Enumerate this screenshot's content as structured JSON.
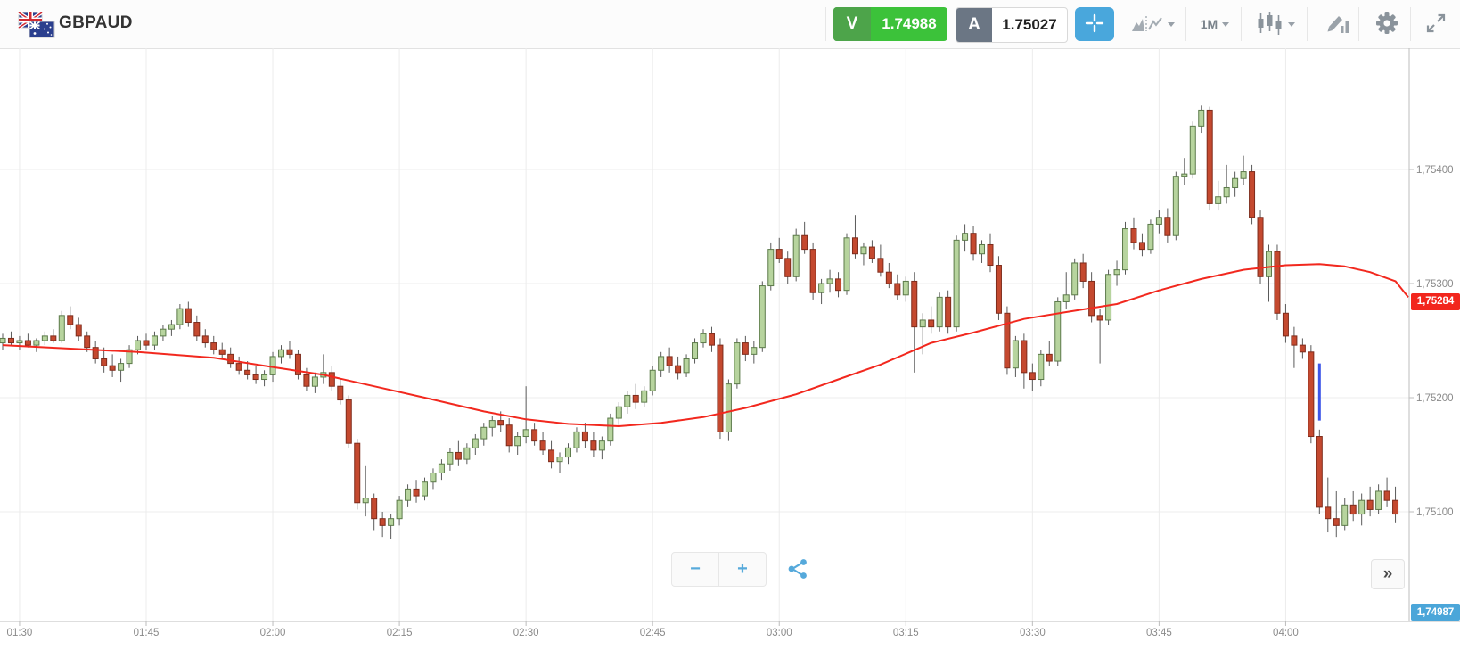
{
  "header": {
    "symbol": "GBPAUD",
    "sell_button": {
      "label": "V",
      "price": "1.74988",
      "color": "#3cc23a"
    },
    "buy_button": {
      "label": "A",
      "price": "1.75027",
      "color": "#6b7684"
    },
    "timeframe_label": "1M",
    "icons": {
      "flags": "gb-au-flag-pair",
      "crosshair": "crosshair",
      "chart_type": "area-line-chart",
      "candle_style": "candlesticks",
      "draw": "pencil-over-bars",
      "settings": "gear",
      "fullscreen": "diagonal-expand-arrows"
    }
  },
  "footer": {
    "zoom_out_label": "−",
    "zoom_in_label": "+",
    "share_icon": "share-nodes",
    "collapse_label": "»"
  },
  "chart_data": {
    "type": "candlestick",
    "symbol": "GBPAUD",
    "interval": "1m",
    "start_time": "01:28",
    "ohlc_format": [
      "open",
      "high",
      "low",
      "close"
    ],
    "price_encoding": "integer v means price = 1.70000 + v/100000",
    "x_tick_labels": [
      "01:30",
      "01:45",
      "02:00",
      "02:15",
      "02:30",
      "02:45",
      "03:00",
      "03:15",
      "03:30",
      "03:45",
      "04:00"
    ],
    "y_tick_labels": [
      "1,75400",
      "1,75300",
      "1,75200",
      "1,75100"
    ],
    "y_tick_prices": [
      1.754,
      1.753,
      1.752,
      1.751
    ],
    "ylim": [
      1.74998,
      1.75506
    ],
    "grid": true,
    "legend_position": "none",
    "indicator_price_tag": {
      "value": "1,75284",
      "price": 1.75284,
      "color": "#f2261d"
    },
    "last_price_tag": {
      "value": "1,74987",
      "price": 1.74987,
      "color": "#4ba6d9",
      "pinned_bottom": true
    },
    "marker_line": {
      "color": "#3d56e8",
      "time": "04:04",
      "price_from": 1.7523,
      "price_to": 1.7518
    },
    "ma_line": {
      "name": "moving-average",
      "color": "#f2281e",
      "points": [
        [
          0,
          1.75246
        ],
        [
          8,
          1.75243
        ],
        [
          16,
          1.7524
        ],
        [
          25,
          1.75235
        ],
        [
          31,
          1.75228
        ],
        [
          38,
          1.7522
        ],
        [
          44,
          1.7521
        ],
        [
          50,
          1.752
        ],
        [
          57,
          1.75188
        ],
        [
          62,
          1.75181
        ],
        [
          67,
          1.75177
        ],
        [
          73,
          1.75175
        ],
        [
          78,
          1.75178
        ],
        [
          83,
          1.75183
        ],
        [
          88,
          1.75191
        ],
        [
          94,
          1.75203
        ],
        [
          99,
          1.75216
        ],
        [
          104,
          1.75229
        ],
        [
          110,
          1.75248
        ],
        [
          115,
          1.75257
        ],
        [
          121,
          1.75269
        ],
        [
          126,
          1.75275
        ],
        [
          132,
          1.75282
        ],
        [
          137,
          1.75294
        ],
        [
          142,
          1.75304
        ],
        [
          147,
          1.75312
        ],
        [
          152,
          1.75316
        ],
        [
          156,
          1.75317
        ],
        [
          159,
          1.75315
        ],
        [
          162,
          1.7531
        ],
        [
          165,
          1.75302
        ],
        [
          167,
          1.75288
        ]
      ]
    },
    "colors": {
      "up_fill": "#b7d49e",
      "up_stroke": "#5c7a4a",
      "down_fill": "#c4492f",
      "down_stroke": "#7e2c1c",
      "wick": "#5a5a5a",
      "grid": "#ececec",
      "axis": "#bdbdbd",
      "tick_label": "#8a8a8a"
    },
    "candles_ohlc": [
      [
        5248,
        5256,
        5242,
        5252
      ],
      [
        5252,
        5258,
        5246,
        5248
      ],
      [
        5248,
        5254,
        5242,
        5250
      ],
      [
        5250,
        5256,
        5244,
        5246
      ],
      [
        5246,
        5252,
        5240,
        5250
      ],
      [
        5250,
        5258,
        5246,
        5254
      ],
      [
        5254,
        5260,
        5248,
        5250
      ],
      [
        5250,
        5276,
        5248,
        5272
      ],
      [
        5272,
        5280,
        5260,
        5264
      ],
      [
        5264,
        5270,
        5250,
        5254
      ],
      [
        5254,
        5258,
        5240,
        5244
      ],
      [
        5244,
        5250,
        5230,
        5234
      ],
      [
        5234,
        5244,
        5222,
        5228
      ],
      [
        5228,
        5238,
        5218,
        5224
      ],
      [
        5224,
        5234,
        5214,
        5230
      ],
      [
        5230,
        5246,
        5226,
        5242
      ],
      [
        5242,
        5254,
        5238,
        5250
      ],
      [
        5250,
        5256,
        5242,
        5246
      ],
      [
        5246,
        5258,
        5242,
        5254
      ],
      [
        5254,
        5264,
        5250,
        5260
      ],
      [
        5260,
        5268,
        5254,
        5264
      ],
      [
        5264,
        5282,
        5260,
        5278
      ],
      [
        5278,
        5284,
        5262,
        5266
      ],
      [
        5266,
        5272,
        5250,
        5254
      ],
      [
        5254,
        5260,
        5244,
        5248
      ],
      [
        5248,
        5254,
        5238,
        5242
      ],
      [
        5242,
        5248,
        5234,
        5238
      ],
      [
        5238,
        5244,
        5226,
        5230
      ],
      [
        5230,
        5236,
        5220,
        5224
      ],
      [
        5224,
        5232,
        5216,
        5220
      ],
      [
        5220,
        5228,
        5212,
        5216
      ],
      [
        5216,
        5224,
        5210,
        5220
      ],
      [
        5220,
        5240,
        5214,
        5236
      ],
      [
        5236,
        5246,
        5230,
        5242
      ],
      [
        5242,
        5250,
        5234,
        5238
      ],
      [
        5238,
        5242,
        5216,
        5220
      ],
      [
        5220,
        5226,
        5206,
        5210
      ],
      [
        5210,
        5222,
        5204,
        5218
      ],
      [
        5218,
        5238,
        5212,
        5222
      ],
      [
        5222,
        5228,
        5206,
        5210
      ],
      [
        5210,
        5216,
        5194,
        5198
      ],
      [
        5198,
        5202,
        5156,
        5160
      ],
      [
        5160,
        5164,
        5102,
        5108
      ],
      [
        5108,
        5140,
        5096,
        5112
      ],
      [
        5112,
        5116,
        5084,
        5094
      ],
      [
        5094,
        5100,
        5078,
        5088
      ],
      [
        5088,
        5098,
        5076,
        5094
      ],
      [
        5094,
        5114,
        5088,
        5110
      ],
      [
        5110,
        5124,
        5104,
        5120
      ],
      [
        5120,
        5128,
        5108,
        5114
      ],
      [
        5114,
        5130,
        5110,
        5126
      ],
      [
        5126,
        5138,
        5120,
        5134
      ],
      [
        5134,
        5146,
        5128,
        5142
      ],
      [
        5142,
        5156,
        5136,
        5152
      ],
      [
        5152,
        5162,
        5140,
        5146
      ],
      [
        5146,
        5160,
        5142,
        5156
      ],
      [
        5156,
        5168,
        5150,
        5164
      ],
      [
        5164,
        5178,
        5158,
        5174
      ],
      [
        5174,
        5184,
        5166,
        5180
      ],
      [
        5180,
        5188,
        5170,
        5176
      ],
      [
        5176,
        5182,
        5152,
        5158
      ],
      [
        5158,
        5170,
        5150,
        5166
      ],
      [
        5166,
        5210,
        5160,
        5172
      ],
      [
        5172,
        5178,
        5158,
        5162
      ],
      [
        5162,
        5170,
        5150,
        5154
      ],
      [
        5154,
        5162,
        5138,
        5144
      ],
      [
        5144,
        5152,
        5134,
        5148
      ],
      [
        5148,
        5160,
        5142,
        5156
      ],
      [
        5156,
        5174,
        5152,
        5170
      ],
      [
        5170,
        5178,
        5156,
        5162
      ],
      [
        5162,
        5170,
        5148,
        5154
      ],
      [
        5154,
        5166,
        5146,
        5162
      ],
      [
        5162,
        5186,
        5158,
        5182
      ],
      [
        5182,
        5196,
        5176,
        5192
      ],
      [
        5192,
        5206,
        5186,
        5202
      ],
      [
        5202,
        5212,
        5190,
        5196
      ],
      [
        5196,
        5210,
        5192,
        5206
      ],
      [
        5206,
        5228,
        5202,
        5224
      ],
      [
        5224,
        5240,
        5218,
        5236
      ],
      [
        5236,
        5244,
        5222,
        5228
      ],
      [
        5228,
        5236,
        5216,
        5222
      ],
      [
        5222,
        5238,
        5218,
        5234
      ],
      [
        5234,
        5252,
        5230,
        5248
      ],
      [
        5248,
        5260,
        5244,
        5256
      ],
      [
        5256,
        5262,
        5240,
        5246
      ],
      [
        5246,
        5252,
        5164,
        5170
      ],
      [
        5170,
        5216,
        5162,
        5212
      ],
      [
        5212,
        5252,
        5208,
        5248
      ],
      [
        5248,
        5254,
        5232,
        5238
      ],
      [
        5238,
        5250,
        5230,
        5244
      ],
      [
        5244,
        5302,
        5240,
        5298
      ],
      [
        5298,
        5336,
        5294,
        5330
      ],
      [
        5330,
        5340,
        5318,
        5322
      ],
      [
        5322,
        5328,
        5300,
        5306
      ],
      [
        5306,
        5348,
        5302,
        5342
      ],
      [
        5342,
        5354,
        5326,
        5330
      ],
      [
        5330,
        5336,
        5286,
        5292
      ],
      [
        5292,
        5304,
        5282,
        5300
      ],
      [
        5300,
        5312,
        5292,
        5304
      ],
      [
        5304,
        5310,
        5288,
        5294
      ],
      [
        5294,
        5344,
        5290,
        5340
      ],
      [
        5340,
        5360,
        5322,
        5326
      ],
      [
        5326,
        5336,
        5316,
        5332
      ],
      [
        5332,
        5338,
        5318,
        5322
      ],
      [
        5322,
        5334,
        5306,
        5310
      ],
      [
        5310,
        5318,
        5296,
        5300
      ],
      [
        5300,
        5308,
        5286,
        5290
      ],
      [
        5290,
        5306,
        5284,
        5302
      ],
      [
        5302,
        5310,
        5222,
        5262
      ],
      [
        5262,
        5274,
        5238,
        5268
      ],
      [
        5268,
        5280,
        5256,
        5262
      ],
      [
        5262,
        5292,
        5258,
        5288
      ],
      [
        5288,
        5294,
        5256,
        5262
      ],
      [
        5262,
        5342,
        5258,
        5338
      ],
      [
        5338,
        5352,
        5328,
        5344
      ],
      [
        5344,
        5350,
        5320,
        5326
      ],
      [
        5326,
        5338,
        5318,
        5334
      ],
      [
        5334,
        5344,
        5310,
        5316
      ],
      [
        5316,
        5324,
        5268,
        5274
      ],
      [
        5274,
        5280,
        5220,
        5226
      ],
      [
        5226,
        5254,
        5218,
        5250
      ],
      [
        5250,
        5256,
        5208,
        5222
      ],
      [
        5222,
        5230,
        5206,
        5216
      ],
      [
        5216,
        5242,
        5210,
        5238
      ],
      [
        5238,
        5250,
        5228,
        5232
      ],
      [
        5232,
        5288,
        5228,
        5284
      ],
      [
        5284,
        5310,
        5278,
        5290
      ],
      [
        5290,
        5322,
        5286,
        5318
      ],
      [
        5318,
        5326,
        5296,
        5302
      ],
      [
        5302,
        5310,
        5266,
        5272
      ],
      [
        5272,
        5278,
        5230,
        5268
      ],
      [
        5268,
        5312,
        5264,
        5308
      ],
      [
        5308,
        5320,
        5298,
        5312
      ],
      [
        5312,
        5354,
        5308,
        5348
      ],
      [
        5348,
        5358,
        5330,
        5336
      ],
      [
        5336,
        5344,
        5324,
        5330
      ],
      [
        5330,
        5356,
        5326,
        5352
      ],
      [
        5352,
        5364,
        5344,
        5358
      ],
      [
        5358,
        5366,
        5336,
        5342
      ],
      [
        5342,
        5398,
        5338,
        5394
      ],
      [
        5394,
        5410,
        5386,
        5396
      ],
      [
        5396,
        5442,
        5392,
        5438
      ],
      [
        5438,
        5456,
        5432,
        5452
      ],
      [
        5452,
        5455,
        5364,
        5370
      ],
      [
        5370,
        5390,
        5364,
        5376
      ],
      [
        5376,
        5404,
        5370,
        5384
      ],
      [
        5384,
        5398,
        5376,
        5392
      ],
      [
        5392,
        5412,
        5386,
        5398
      ],
      [
        5398,
        5404,
        5352,
        5358
      ],
      [
        5358,
        5364,
        5300,
        5306
      ],
      [
        5306,
        5334,
        5284,
        5328
      ],
      [
        5328,
        5334,
        5268,
        5274
      ],
      [
        5274,
        5282,
        5248,
        5254
      ],
      [
        5254,
        5262,
        5226,
        5246
      ],
      [
        5246,
        5252,
        5234,
        5240
      ],
      [
        5240,
        5246,
        5160,
        5166
      ],
      [
        5166,
        5172,
        5098,
        5104
      ],
      [
        5104,
        5130,
        5082,
        5094
      ],
      [
        5094,
        5118,
        5078,
        5088
      ],
      [
        5088,
        5112,
        5084,
        5106
      ],
      [
        5106,
        5118,
        5092,
        5098
      ],
      [
        5098,
        5116,
        5088,
        5110
      ],
      [
        5110,
        5122,
        5096,
        5102
      ],
      [
        5102,
        5124,
        5098,
        5118
      ],
      [
        5118,
        5130,
        5104,
        5110
      ],
      [
        5110,
        5122,
        5090,
        5098
      ]
    ]
  }
}
